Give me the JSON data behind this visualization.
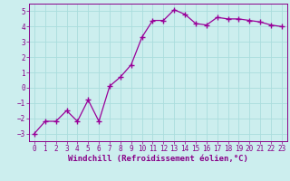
{
  "x": [
    0,
    1,
    2,
    3,
    4,
    5,
    6,
    7,
    8,
    9,
    10,
    11,
    12,
    13,
    14,
    15,
    16,
    17,
    18,
    19,
    20,
    21,
    22,
    23
  ],
  "y": [
    -3.0,
    -2.2,
    -2.2,
    -1.5,
    -2.2,
    -0.8,
    -2.2,
    0.1,
    0.7,
    1.5,
    3.3,
    4.4,
    4.4,
    5.1,
    4.8,
    4.2,
    4.1,
    4.6,
    4.5,
    4.5,
    4.4,
    4.3,
    4.1,
    4.0
  ],
  "line_color": "#990099",
  "marker": "+",
  "marker_size": 4,
  "marker_linewidth": 1.0,
  "bg_color": "#cceeee",
  "grid_color": "#aadddd",
  "xlabel": "Windchill (Refroidissement éolien,°C)",
  "ylabel": "",
  "xlim": [
    -0.5,
    23.5
  ],
  "ylim": [
    -3.5,
    5.5
  ],
  "yticks": [
    -3,
    -2,
    -1,
    0,
    1,
    2,
    3,
    4,
    5
  ],
  "xticks": [
    0,
    1,
    2,
    3,
    4,
    5,
    6,
    7,
    8,
    9,
    10,
    11,
    12,
    13,
    14,
    15,
    16,
    17,
    18,
    19,
    20,
    21,
    22,
    23
  ],
  "tick_label_fontsize": 5.5,
  "xlabel_fontsize": 6.5,
  "axis_color": "#880088",
  "spine_color": "#880088",
  "linewidth": 0.9
}
